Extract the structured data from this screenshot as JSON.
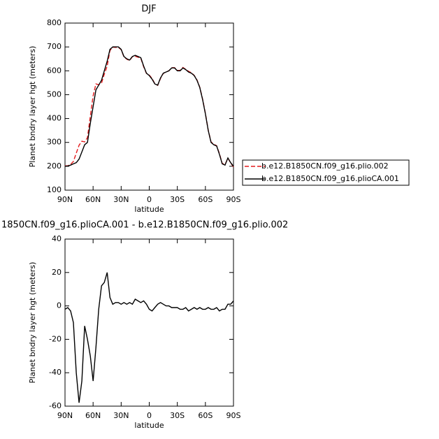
{
  "chart_data": [
    {
      "type": "line",
      "title": "DJF",
      "xlabel": "latitude",
      "ylabel": "Planet bndry layer hgt (meters)",
      "x": [
        90,
        87,
        84,
        81,
        78,
        75,
        72,
        69,
        66,
        63,
        60,
        57,
        54,
        51,
        48,
        45,
        42,
        39,
        36,
        33,
        30,
        27,
        24,
        21,
        18,
        15,
        12,
        9,
        6,
        3,
        0,
        -3,
        -6,
        -9,
        -12,
        -15,
        -18,
        -21,
        -24,
        -27,
        -30,
        -33,
        -36,
        -39,
        -42,
        -45,
        -48,
        -51,
        -54,
        -57,
        -60,
        -63,
        -66,
        -69,
        -72,
        -75,
        -78,
        -81,
        -84,
        -87,
        -90
      ],
      "xlim": [
        90,
        -90
      ],
      "xticks": [
        {
          "value": 90,
          "label": "90N"
        },
        {
          "value": 60,
          "label": "60N"
        },
        {
          "value": 30,
          "label": "30N"
        },
        0,
        {
          "value": -30,
          "label": "30S"
        },
        {
          "value": -60,
          "label": "60S"
        },
        {
          "value": -90,
          "label": "90S"
        }
      ],
      "ylim": [
        100,
        800
      ],
      "yticks": [
        100,
        200,
        300,
        400,
        500,
        600,
        700,
        800
      ],
      "legend": "outside-right",
      "series": [
        {
          "name": "b.e12.B1850CN.f09_g16.plio.002",
          "color": "#e41a1c",
          "dash": "dashed",
          "values": [
            202,
            202,
            208,
            220,
            255,
            288,
            305,
            302,
            320,
            410,
            495,
            545,
            542,
            548,
            586,
            620,
            685,
            699,
            698,
            698,
            689,
            658,
            649,
            643,
            659,
            661,
            657,
            653,
            617,
            589,
            582,
            568,
            546,
            539,
            568,
            589,
            595,
            600,
            613,
            613,
            601,
            602,
            614,
            606,
            598,
            592,
            581,
            562,
            531,
            482,
            422,
            351,
            302,
            292,
            286,
            253,
            212,
            207,
            234,
            214,
            197
          ]
        },
        {
          "name": "b.e12.B1850CN.f09_g16.plioCA.001",
          "color": "#000000",
          "dash": "solid",
          "values": [
            200,
            201,
            205,
            210,
            215,
            230,
            260,
            290,
            300,
            380,
            450,
            520,
            540,
            560,
            600,
            640,
            690,
            700,
            700,
            700,
            690,
            660,
            650,
            645,
            660,
            665,
            660,
            655,
            620,
            590,
            580,
            565,
            545,
            540,
            570,
            590,
            595,
            600,
            612,
            612,
            600,
            600,
            612,
            605,
            595,
            590,
            580,
            560,
            530,
            480,
            420,
            350,
            300,
            290,
            285,
            250,
            210,
            205,
            235,
            215,
            200
          ]
        }
      ]
    },
    {
      "type": "line",
      "title": "1850CN.f09_g16.plioCA.001 - b.e12.B1850CN.f09_g16.plio.002",
      "xlabel": "latitude",
      "ylabel": "Planet bndry layer hgt (meters)",
      "x": [
        90,
        87,
        84,
        81,
        78,
        75,
        72,
        69,
        66,
        63,
        60,
        57,
        54,
        51,
        48,
        45,
        42,
        39,
        36,
        33,
        30,
        27,
        24,
        21,
        18,
        15,
        12,
        9,
        6,
        3,
        0,
        -3,
        -6,
        -9,
        -12,
        -15,
        -18,
        -21,
        -24,
        -27,
        -30,
        -33,
        -36,
        -39,
        -42,
        -45,
        -48,
        -51,
        -54,
        -57,
        -60,
        -63,
        -66,
        -69,
        -72,
        -75,
        -78,
        -81,
        -84,
        -87,
        -90
      ],
      "xlim": [
        90,
        -90
      ],
      "xticks": [
        {
          "value": 90,
          "label": "90N"
        },
        {
          "value": 60,
          "label": "60N"
        },
        {
          "value": 30,
          "label": "30N"
        },
        0,
        {
          "value": -30,
          "label": "30S"
        },
        {
          "value": -60,
          "label": "60S"
        },
        {
          "value": -90,
          "label": "90S"
        }
      ],
      "ylim": [
        -60,
        40
      ],
      "yticks": [
        -60,
        -40,
        -20,
        0,
        20,
        40
      ],
      "series": [
        {
          "color": "#000000",
          "dash": "solid",
          "values": [
            -2,
            -1,
            -3,
            -10,
            -40,
            -58,
            -45,
            -12,
            -20,
            -30,
            -45,
            -25,
            -2,
            12,
            14,
            20,
            5,
            1,
            2,
            2,
            1,
            2,
            1,
            2,
            1,
            4,
            3,
            2,
            3,
            1,
            -2,
            -3,
            -1,
            1,
            2,
            1,
            0,
            0,
            -1,
            -1,
            -1,
            -2,
            -2,
            -1,
            -3,
            -2,
            -1,
            -2,
            -1,
            -2,
            -2,
            -1,
            -2,
            -2,
            -1,
            -3,
            -2,
            -2,
            1,
            1,
            3
          ]
        }
      ]
    }
  ]
}
